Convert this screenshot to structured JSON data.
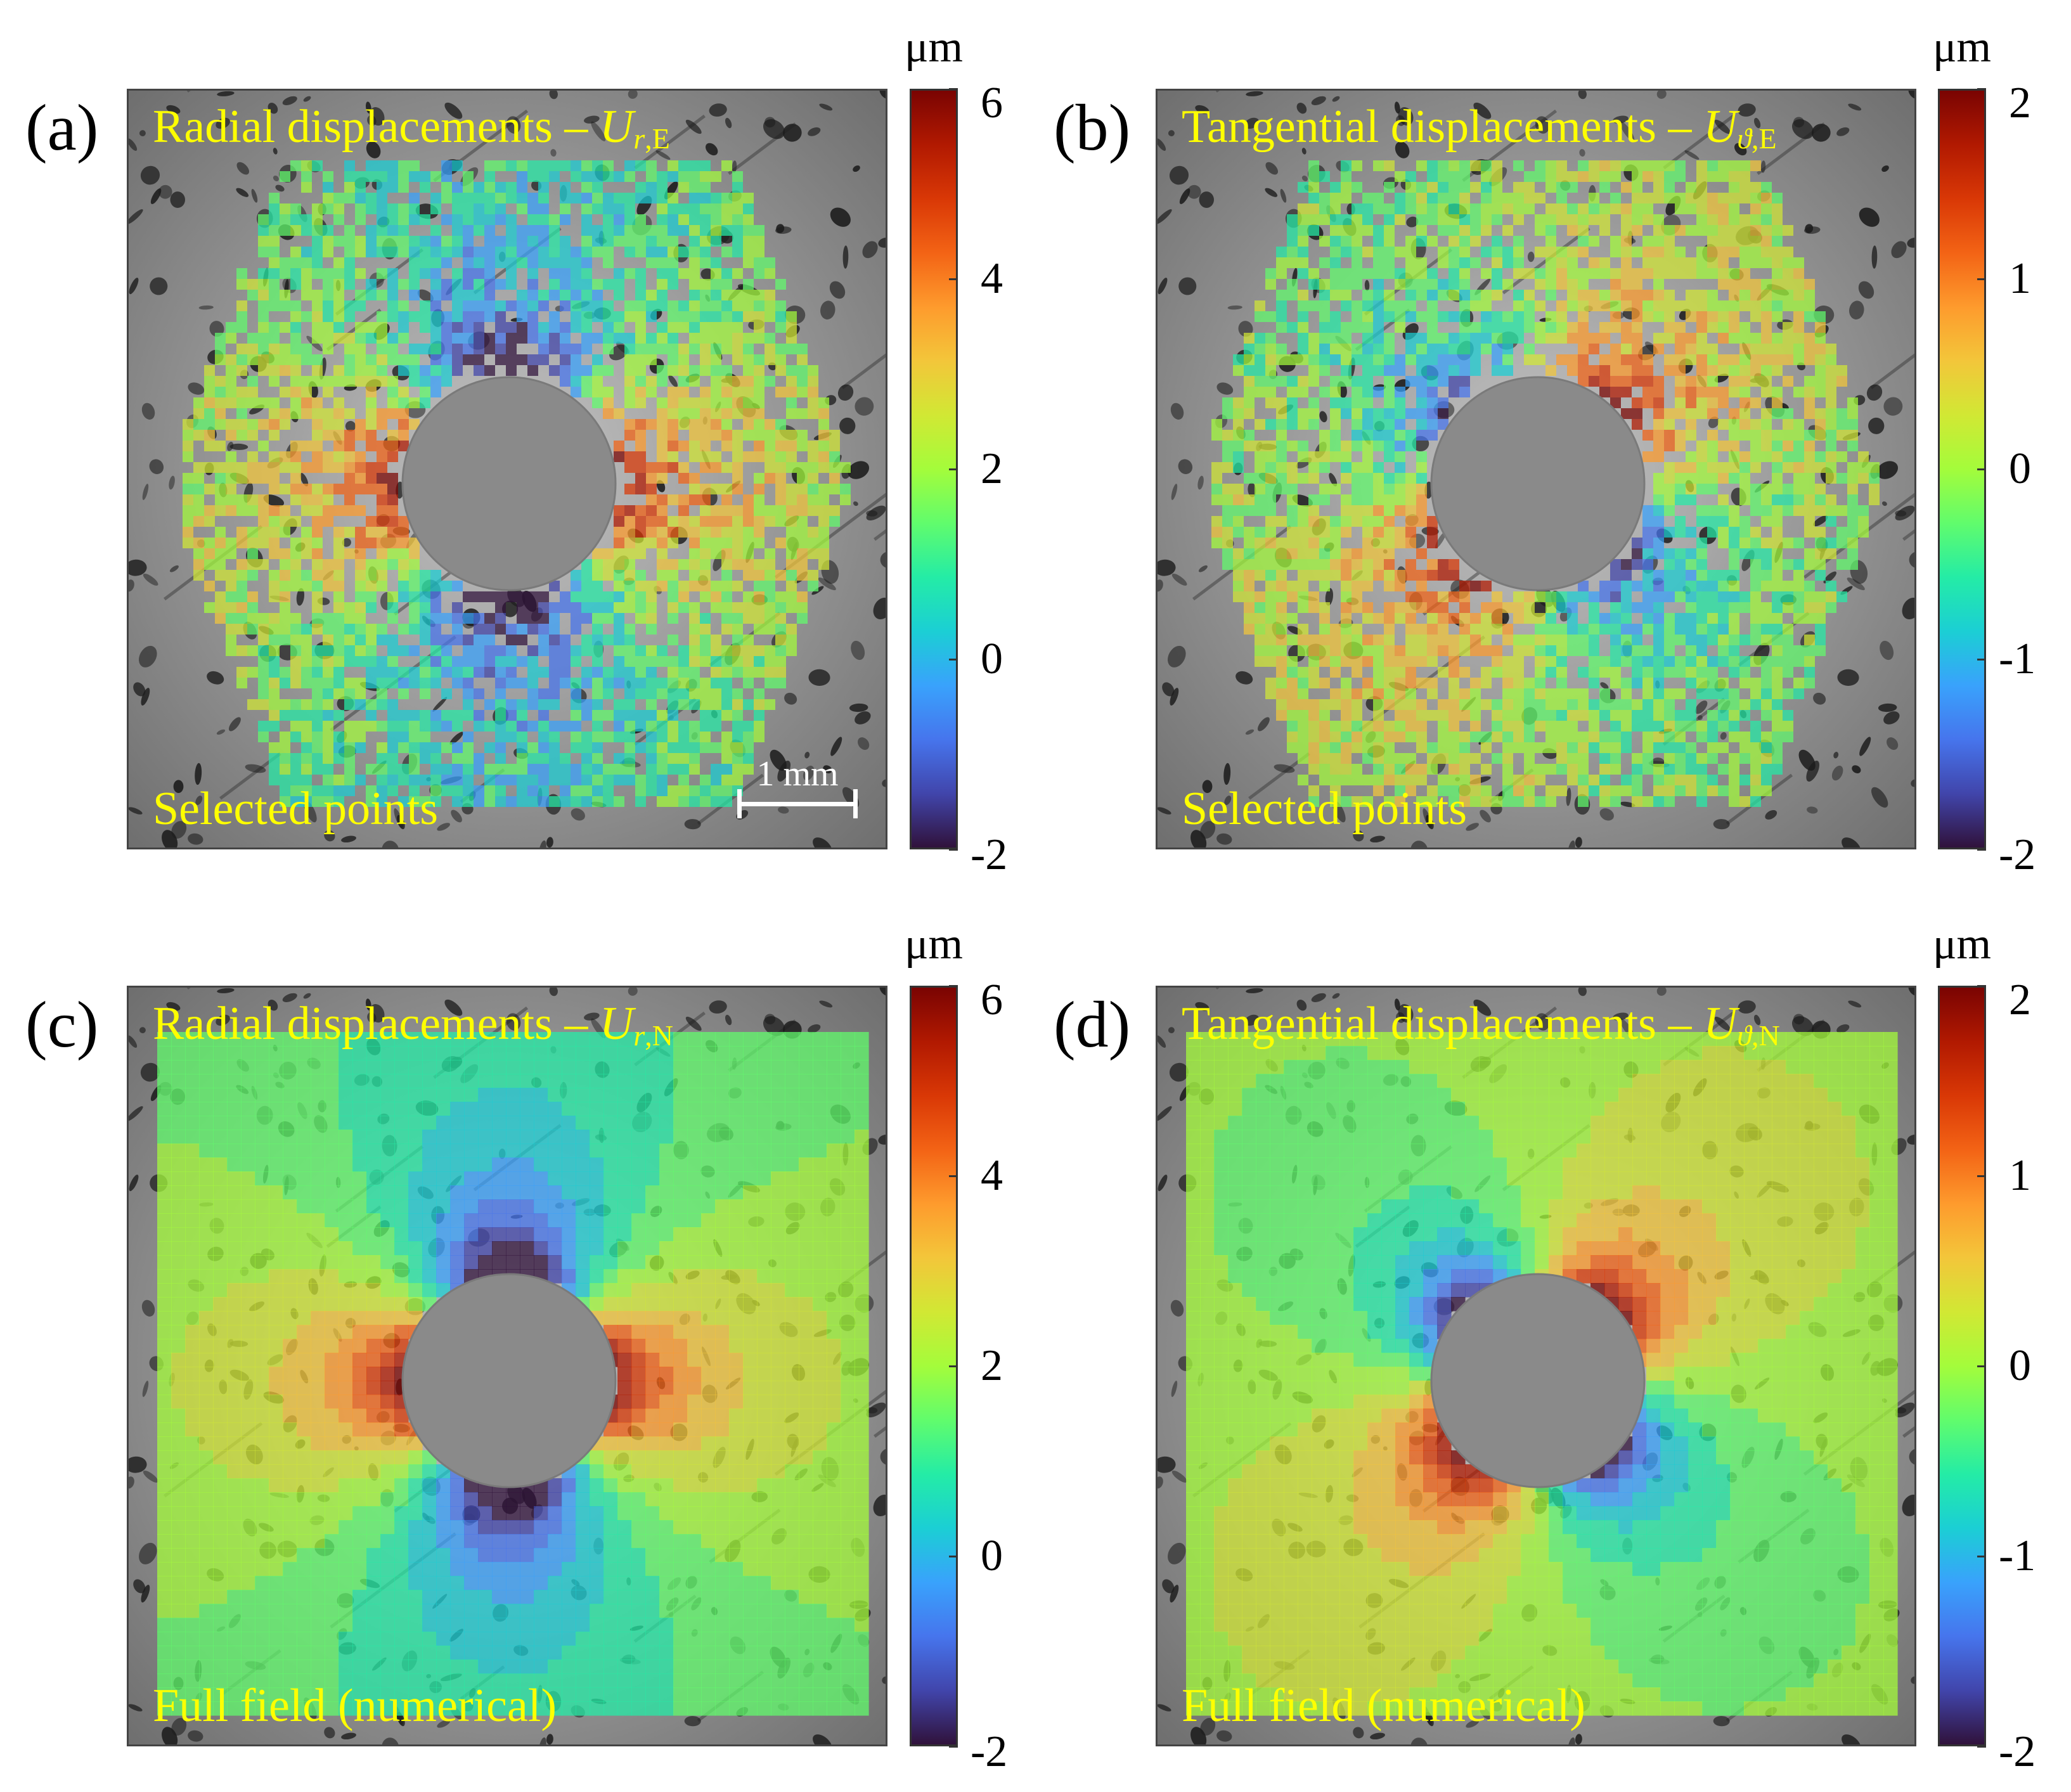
{
  "colors": {
    "label": "#ffff00",
    "colormap": [
      "#30123b",
      "#4145ab",
      "#4675ed",
      "#39a2fc",
      "#1bcfd4",
      "#24eca6",
      "#61fc6c",
      "#a4fc3b",
      "#d1e834",
      "#f3c63a",
      "#fe9b2d",
      "#f36315",
      "#d93806",
      "#b11901",
      "#7a0402"
    ]
  },
  "scale_bar": "1 mm",
  "panels": [
    {
      "id": "a",
      "letter": "(a)",
      "title_text": "Radial displacements – ",
      "title_symbol": "U",
      "title_sub_italic": "r",
      "title_sub_rest": ",E",
      "footer": "Selected points",
      "field": "radial",
      "mode": "points"
    },
    {
      "id": "b",
      "letter": "(b)",
      "title_text": "Tangential displacements – ",
      "title_symbol": "U",
      "title_sub_italic": "ϑ",
      "title_sub_rest": ",E",
      "footer": "Selected points",
      "field": "tangential",
      "mode": "points"
    },
    {
      "id": "c",
      "letter": "(c)",
      "title_text": "Radial displacements – ",
      "title_symbol": "U",
      "title_sub_italic": "r",
      "title_sub_rest": ",N",
      "footer": "Full field (numerical)",
      "field": "radial",
      "mode": "full"
    },
    {
      "id": "d",
      "letter": "(d)",
      "title_text": "Tangential displacements – ",
      "title_symbol": "U",
      "title_sub_italic": "ϑ",
      "title_sub_rest": ",N",
      "footer": "Full field (numerical)",
      "field": "tangential",
      "mode": "full"
    }
  ],
  "chart_data": [
    {
      "type": "heatmap",
      "panel": "a",
      "title": "Radial displacements – U r,E",
      "subtitle": "Selected points",
      "colorbar": {
        "unit": "μm",
        "min": -2,
        "max": 6,
        "ticks": [
          6,
          4,
          2,
          0,
          -2
        ]
      }
    },
    {
      "type": "heatmap",
      "panel": "b",
      "title": "Tangential displacements – U ϑ,E",
      "subtitle": "Selected points",
      "colorbar": {
        "unit": "μm",
        "min": -2,
        "max": 2,
        "ticks": [
          2,
          1,
          0,
          -1,
          -2
        ]
      }
    },
    {
      "type": "heatmap",
      "panel": "c",
      "title": "Radial displacements – U r,N",
      "subtitle": "Full field (numerical)",
      "colorbar": {
        "unit": "μm",
        "min": -2,
        "max": 6,
        "ticks": [
          6,
          4,
          2,
          0,
          -2
        ]
      }
    },
    {
      "type": "heatmap",
      "panel": "d",
      "title": "Tangential displacements – U ϑ,N",
      "subtitle": "Full field (numerical)",
      "colorbar": {
        "unit": "μm",
        "min": -2,
        "max": 2,
        "ticks": [
          2,
          1,
          0,
          -1,
          -2
        ]
      }
    }
  ]
}
